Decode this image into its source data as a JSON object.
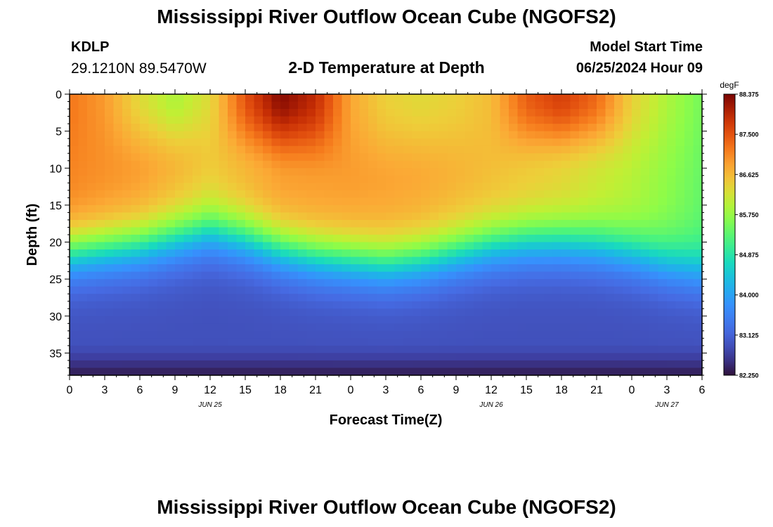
{
  "title_top": "Mississippi River Outflow Ocean Cube (NGOFS2)",
  "title_bottom": "Mississippi River Outflow Ocean Cube (NGOFS2)",
  "station": {
    "id": "KDLP",
    "coords": "29.1210N  89.5470W"
  },
  "subtitle": "2-D Temperature at Depth",
  "model_start": {
    "label": "Model Start Time",
    "value": "06/25/2024 Hour 09"
  },
  "chart_data": {
    "type": "heatmap",
    "xlabel": "Forecast Time(Z)",
    "ylabel": "Depth (ft)",
    "xlim": [
      0,
      54
    ],
    "ylim": [
      0,
      38
    ],
    "y_inverted": true,
    "x_ticks": [
      {
        "x": 0,
        "label": "0"
      },
      {
        "x": 3,
        "label": "3"
      },
      {
        "x": 6,
        "label": "6"
      },
      {
        "x": 9,
        "label": "9"
      },
      {
        "x": 12,
        "label": "12"
      },
      {
        "x": 15,
        "label": "15"
      },
      {
        "x": 18,
        "label": "18"
      },
      {
        "x": 21,
        "label": "21"
      },
      {
        "x": 24,
        "label": "0"
      },
      {
        "x": 27,
        "label": "3"
      },
      {
        "x": 30,
        "label": "6"
      },
      {
        "x": 33,
        "label": "9"
      },
      {
        "x": 36,
        "label": "12"
      },
      {
        "x": 39,
        "label": "15"
      },
      {
        "x": 42,
        "label": "18"
      },
      {
        "x": 45,
        "label": "21"
      },
      {
        "x": 48,
        "label": "0"
      },
      {
        "x": 51,
        "label": "3"
      },
      {
        "x": 54,
        "label": "6"
      }
    ],
    "date_labels": [
      {
        "x": 12,
        "label": "JUN 25"
      },
      {
        "x": 36,
        "label": "JUN 26"
      },
      {
        "x": 51,
        "label": "JUN 27"
      }
    ],
    "y_ticks": [
      0,
      5,
      10,
      15,
      20,
      25,
      30,
      35
    ],
    "colorbar": {
      "unit": "degF",
      "min": 82.25,
      "max": 88.375,
      "tick_labels": [
        "88.375",
        "87.500",
        "86.625",
        "85.750",
        "84.875",
        "84.000",
        "83.125",
        "82.250"
      ]
    },
    "field": {
      "thermocline_depth": [
        {
          "x": 0,
          "d": 21.5
        },
        {
          "x": 3,
          "d": 21.0
        },
        {
          "x": 6,
          "d": 20.5
        },
        {
          "x": 9,
          "d": 19.5
        },
        {
          "x": 12,
          "d": 18.5
        },
        {
          "x": 15,
          "d": 19.5
        },
        {
          "x": 18,
          "d": 21.0
        },
        {
          "x": 21,
          "d": 22.0
        },
        {
          "x": 24,
          "d": 22.5
        },
        {
          "x": 27,
          "d": 23.0
        },
        {
          "x": 30,
          "d": 22.5
        },
        {
          "x": 33,
          "d": 21.5
        },
        {
          "x": 36,
          "d": 20.5
        },
        {
          "x": 39,
          "d": 20.0
        },
        {
          "x": 42,
          "d": 20.0
        },
        {
          "x": 45,
          "d": 20.5
        },
        {
          "x": 48,
          "d": 21.5
        },
        {
          "x": 51,
          "d": 23.0
        },
        {
          "x": 54,
          "d": 24.0
        }
      ],
      "surface_temp": [
        {
          "x": 0,
          "t": 87.2
        },
        {
          "x": 3,
          "t": 86.9
        },
        {
          "x": 6,
          "t": 86.3
        },
        {
          "x": 9,
          "t": 85.9
        },
        {
          "x": 12,
          "t": 86.3
        },
        {
          "x": 15,
          "t": 87.5
        },
        {
          "x": 18,
          "t": 88.3
        },
        {
          "x": 21,
          "t": 87.9
        },
        {
          "x": 24,
          "t": 86.8
        },
        {
          "x": 27,
          "t": 86.4
        },
        {
          "x": 30,
          "t": 86.3
        },
        {
          "x": 33,
          "t": 86.4
        },
        {
          "x": 36,
          "t": 86.6
        },
        {
          "x": 39,
          "t": 87.4
        },
        {
          "x": 42,
          "t": 87.7
        },
        {
          "x": 45,
          "t": 87.3
        },
        {
          "x": 48,
          "t": 86.4
        },
        {
          "x": 51,
          "t": 85.9
        },
        {
          "x": 54,
          "t": 85.5
        }
      ],
      "mixed_layer_temp": [
        {
          "x": 0,
          "t": 87.1
        },
        {
          "x": 6,
          "t": 86.9
        },
        {
          "x": 12,
          "t": 86.5
        },
        {
          "x": 18,
          "t": 86.9
        },
        {
          "x": 24,
          "t": 86.9
        },
        {
          "x": 30,
          "t": 86.8
        },
        {
          "x": 36,
          "t": 86.6
        },
        {
          "x": 42,
          "t": 86.4
        },
        {
          "x": 48,
          "t": 86.0
        },
        {
          "x": 54,
          "t": 85.4
        }
      ],
      "bottom_temp": 82.9
    }
  }
}
